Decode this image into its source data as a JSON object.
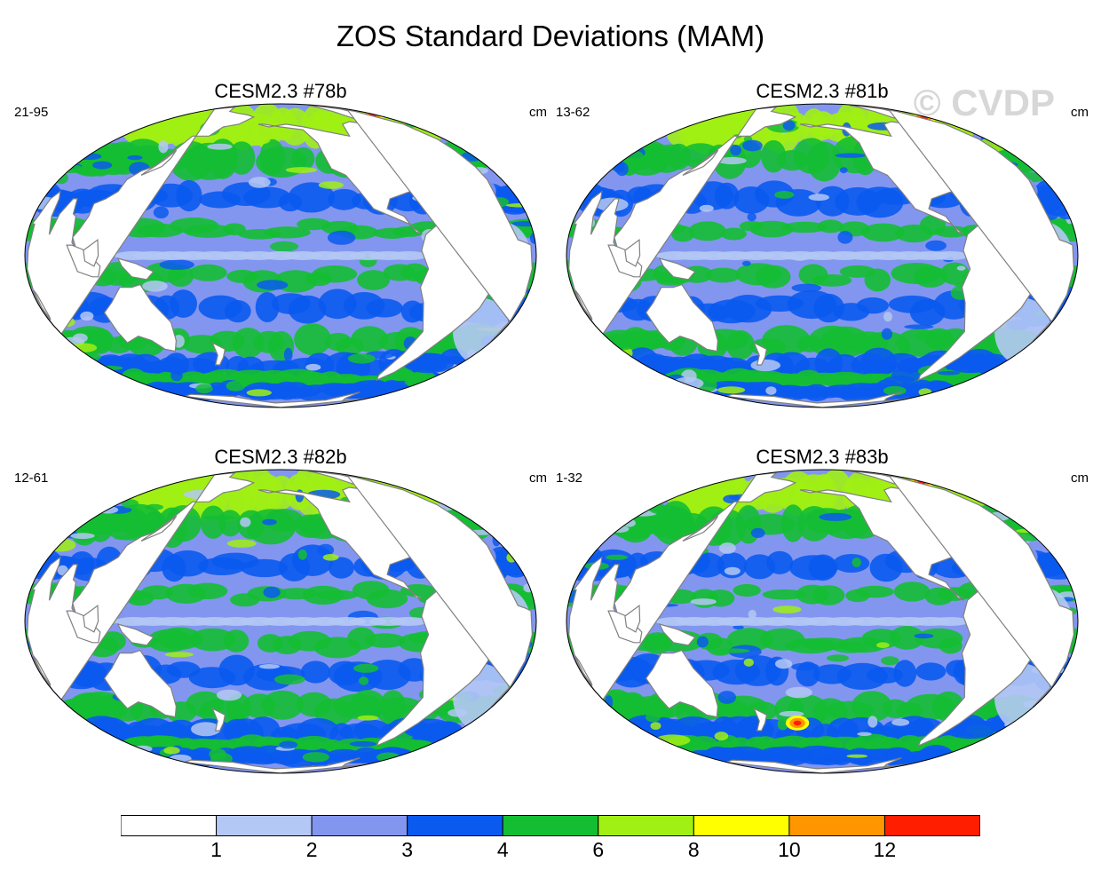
{
  "figure": {
    "title": "ZOS Standard Deviations (MAM)",
    "watermark": "© CVDP"
  },
  "panels": [
    {
      "title": "CESM2.3 #78b",
      "range": "21-95",
      "units": "cm"
    },
    {
      "title": "CESM2.3 #81b",
      "range": "13-62",
      "units": "cm"
    },
    {
      "title": "CESM2.3 #82b",
      "range": "12-61",
      "units": "cm"
    },
    {
      "title": "CESM2.3 #83b",
      "range": "1-32",
      "units": "cm"
    }
  ],
  "colorbar": {
    "colors": [
      "#ffffff",
      "#b4c8f5",
      "#8296f0",
      "#0a5af0",
      "#14be32",
      "#a0f014",
      "#ffff00",
      "#ff9600",
      "#ff1e00"
    ],
    "tick_labels": [
      "1",
      "2",
      "3",
      "4",
      "6",
      "8",
      "10",
      "12"
    ]
  },
  "map_colors": {
    "land": "#ffffff",
    "coast": "#808080",
    "ocean_base": "#8296f0"
  }
}
